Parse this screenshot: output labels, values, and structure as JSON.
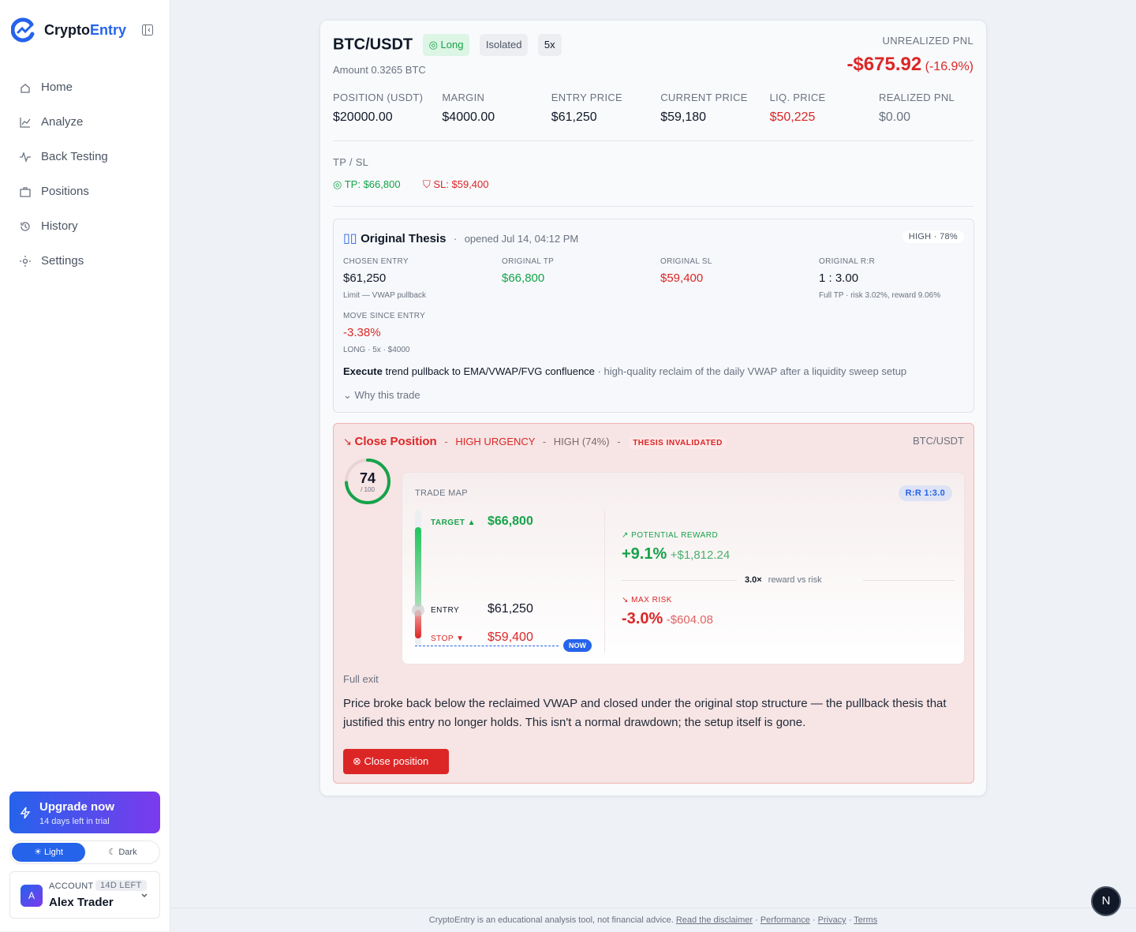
{
  "sidebar": {
    "brand": {
      "prefix": "Crypto",
      "suffix": "Entry"
    },
    "nav": [
      "Home",
      "Analyze",
      "Back Testing",
      "Positions",
      "History",
      "Settings"
    ],
    "upgrade": {
      "title": "Upgrade now",
      "subtitle": "14 days left in trial"
    },
    "theme": [
      "Light",
      "Dark"
    ],
    "account": {
      "avatar": "A",
      "label": "ACCOUNT",
      "badge": "14D LEFT",
      "name": "Alex Trader"
    }
  },
  "position": {
    "symbol": "BTC/USDT",
    "side": "Long",
    "margin_mode": "Isolated",
    "leverage": "5x",
    "amount": "Amount 0.3265 BTC",
    "pnl_label": "UNREALIZED PNL",
    "pnl": "-$675.92",
    "pnl_pct": "(-16.9%)",
    "stats": [
      {
        "label": "POSITION (USDT)",
        "value": "$20000.00"
      },
      {
        "label": "MARGIN",
        "value": "$4000.00"
      },
      {
        "label": "ENTRY PRICE",
        "value": "$61,250"
      },
      {
        "label": "CURRENT PRICE",
        "value": "$59,180"
      },
      {
        "label": "LIQ. PRICE",
        "value": "$50,225"
      },
      {
        "label": "REALIZED PNL",
        "value": "$0.00"
      }
    ],
    "tpsl_label": "TP / SL",
    "tp": "TP: $66,800",
    "sl": "SL: $59,400"
  },
  "thesis": {
    "title": "Original Thesis",
    "sep": "·",
    "opened": "opened Jul 14, 04:12 PM",
    "badge": "HIGH · 78%",
    "fields": [
      {
        "label": "CHOSEN ENTRY",
        "value": "$61,250",
        "note": "Limit — VWAP pullback"
      },
      {
        "label": "ORIGINAL TP",
        "value": "$66,800"
      },
      {
        "label": "ORIGINAL SL",
        "value": "$59,400"
      },
      {
        "label": "ORIGINAL R:R",
        "value": "1 : 3.00",
        "note": "Full TP · risk 3.02%, reward 9.06%"
      },
      {
        "label": "MOVE SINCE ENTRY",
        "value": "-3.38%",
        "note": "LONG · 5x · $4000"
      }
    ],
    "summary": {
      "verb": "Execute",
      "setup": " trend pullback to EMA/VWAP/FVG confluence",
      "detail": " · high-quality reclaim of the daily VWAP after a liquidity sweep setup"
    },
    "why": "Why this trade"
  },
  "action": {
    "title": "Close Position",
    "sep": "-",
    "urgency": "HIGH URGENCY",
    "confidence": "HIGH (74%)",
    "status": "THESIS INVALIDATED",
    "symbol": "BTC/USDT",
    "score": 74,
    "score_max": 100,
    "score_label": "/ 100",
    "trade_map": {
      "title": "TRADE MAP",
      "rr": "R:R 1:3.0",
      "target": {
        "label": "TARGET ▲",
        "value": "$66,800"
      },
      "entry": {
        "label": "ENTRY",
        "value": "$61,250"
      },
      "stop": {
        "label": "STOP ▼",
        "value": "$59,400"
      },
      "now": "NOW",
      "reward": {
        "label": "POTENTIAL REWARD",
        "pct": "+9.1%",
        "amount": "+$1,812.24"
      },
      "ratio": {
        "value": "3.0×",
        "label": "reward vs risk"
      },
      "risk": {
        "label": "MAX RISK",
        "pct": "-3.0%",
        "amount": "-$604.08"
      }
    },
    "exit": "Full exit",
    "reason": "Price broke back below the reclaimed VWAP and closed under the original stop structure — the pullback thesis that justified this entry no longer holds. This isn't a normal drawdown; the setup itself is gone.",
    "button": "Close position"
  },
  "footer": {
    "text": "CryptoEntry is an educational analysis tool, not financial advice.",
    "links": [
      "Read the disclaimer",
      "Performance",
      "Privacy",
      "Terms"
    ],
    "sep": "·"
  },
  "dev_badge": "N"
}
